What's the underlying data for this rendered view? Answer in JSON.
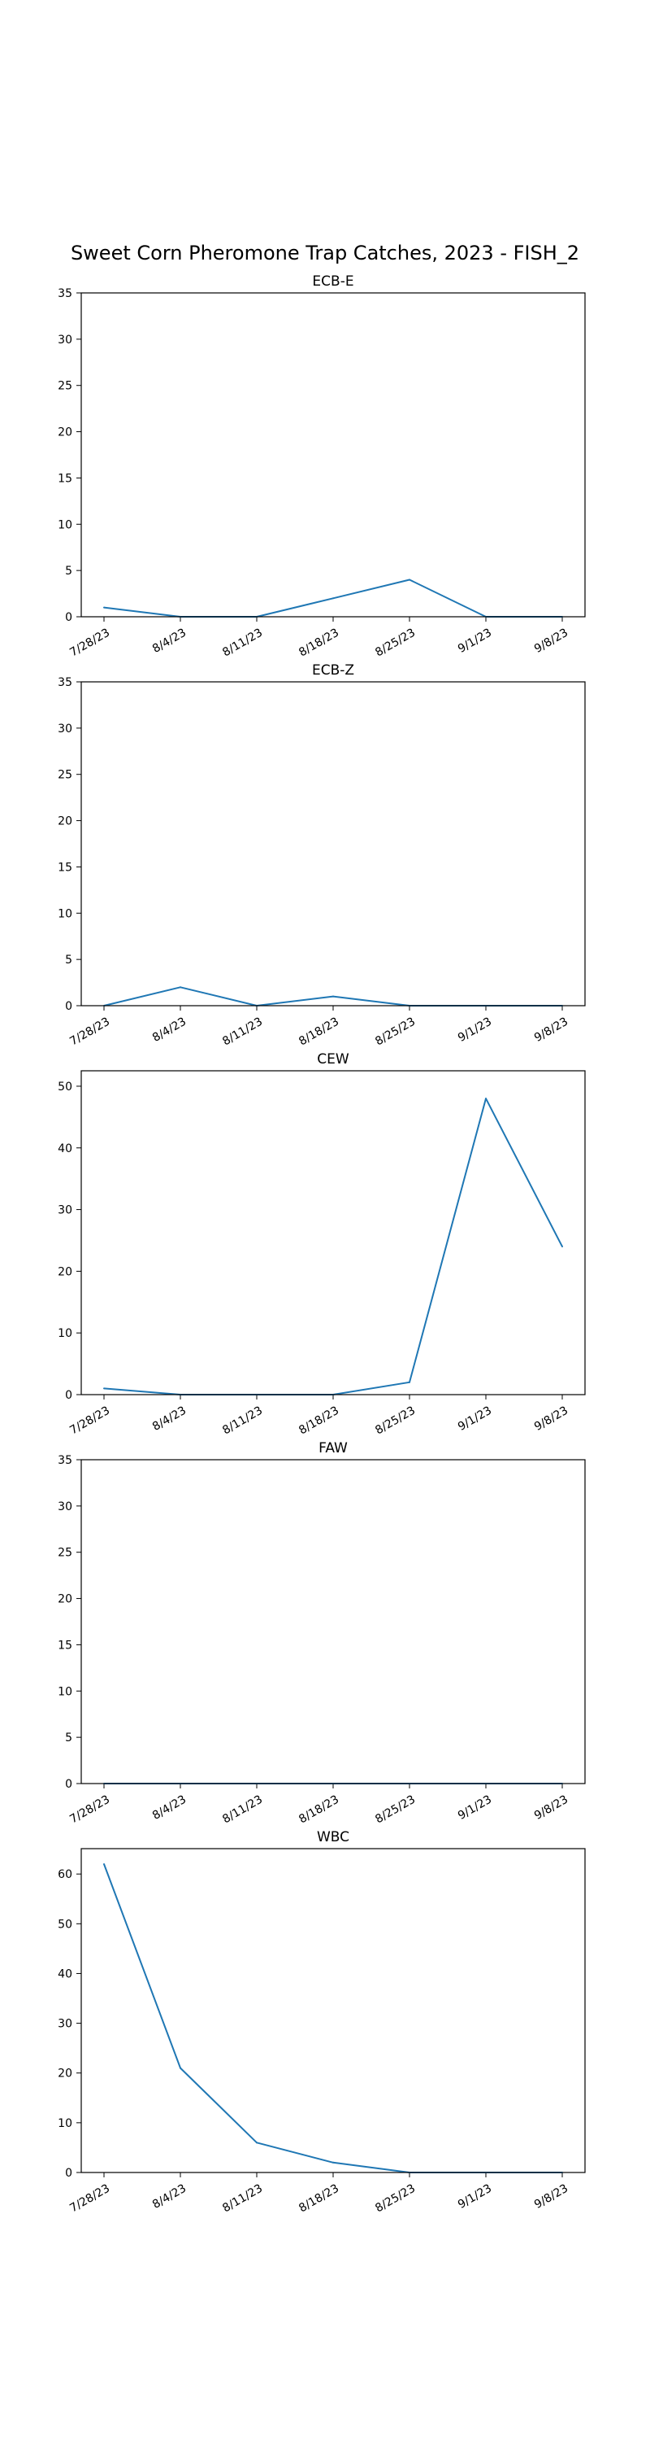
{
  "figure": {
    "title": "Sweet Corn Pheromone Trap Catches, 2023 - FISH_2",
    "line_color": "#1f77b4"
  },
  "chart_data": [
    {
      "type": "line",
      "title": "ECB-E",
      "categories": [
        "7/28/23",
        "8/4/23",
        "8/11/23",
        "8/18/23",
        "8/25/23",
        "9/1/23",
        "9/8/23"
      ],
      "values": [
        1,
        0,
        0,
        2,
        4,
        0,
        0
      ],
      "ylim": [
        0,
        35
      ],
      "yticks": [
        0,
        5,
        10,
        15,
        20,
        25,
        30,
        35
      ],
      "xlabel": "",
      "ylabel": "",
      "grid": false
    },
    {
      "type": "line",
      "title": "ECB-Z",
      "categories": [
        "7/28/23",
        "8/4/23",
        "8/11/23",
        "8/18/23",
        "8/25/23",
        "9/1/23",
        "9/8/23"
      ],
      "values": [
        0,
        2,
        0,
        1,
        0,
        0,
        0
      ],
      "ylim": [
        0,
        35
      ],
      "yticks": [
        0,
        5,
        10,
        15,
        20,
        25,
        30,
        35
      ],
      "xlabel": "",
      "ylabel": "",
      "grid": false
    },
    {
      "type": "line",
      "title": "CEW",
      "categories": [
        "7/28/23",
        "8/4/23",
        "8/11/23",
        "8/18/23",
        "8/25/23",
        "9/1/23",
        "9/8/23"
      ],
      "values": [
        1,
        0,
        0,
        0,
        2,
        48,
        24
      ],
      "ylim": [
        0,
        52.5
      ],
      "yticks": [
        0,
        10,
        20,
        30,
        40,
        50
      ],
      "xlabel": "",
      "ylabel": "",
      "grid": false
    },
    {
      "type": "line",
      "title": "FAW",
      "categories": [
        "7/28/23",
        "8/4/23",
        "8/11/23",
        "8/18/23",
        "8/25/23",
        "9/1/23",
        "9/8/23"
      ],
      "values": [
        0,
        0,
        0,
        0,
        0,
        0,
        0
      ],
      "ylim": [
        0,
        35
      ],
      "yticks": [
        0,
        5,
        10,
        15,
        20,
        25,
        30,
        35
      ],
      "xlabel": "",
      "ylabel": "",
      "grid": false
    },
    {
      "type": "line",
      "title": "WBC",
      "categories": [
        "7/28/23",
        "8/4/23",
        "8/11/23",
        "8/18/23",
        "8/25/23",
        "9/1/23",
        "9/8/23"
      ],
      "values": [
        62,
        21,
        6,
        2,
        0,
        0,
        0
      ],
      "ylim": [
        0,
        65.1
      ],
      "yticks": [
        0,
        10,
        20,
        30,
        40,
        50,
        60
      ],
      "xlabel": "",
      "ylabel": "",
      "grid": false
    }
  ]
}
